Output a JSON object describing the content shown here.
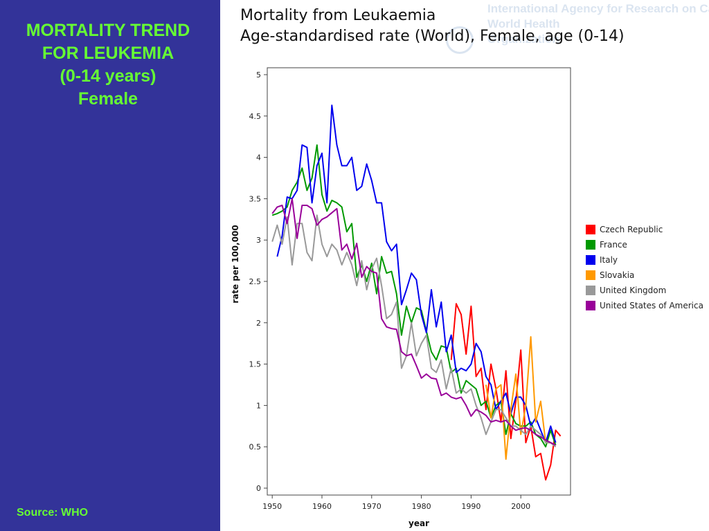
{
  "slide": {
    "title_lines": [
      "MORTALITY TREND",
      "FOR LEUKEMIA",
      "(0-14 years)",
      "Female"
    ],
    "source": "Source: WHO",
    "watermark_lines": [
      "International Agency for Research on Cancer",
      "World Health",
      "Organization"
    ],
    "colors": {
      "panel": "#333399",
      "title": "#66ff33"
    }
  },
  "chart_data": {
    "type": "line",
    "title": "Mortality from Leukaemia",
    "subtitle": "Age-standardised rate (World), Female, age (0-14)",
    "xlabel": "year",
    "ylabel": "rate per 100,000",
    "xlim": [
      1949,
      2010
    ],
    "ylim": [
      0,
      5
    ],
    "xticks": [
      1950,
      1960,
      1970,
      1980,
      1990,
      2000
    ],
    "yticks": [
      0,
      0.5,
      1,
      1.5,
      2,
      2.5,
      3,
      3.5,
      4,
      4.5,
      5
    ],
    "grid": false,
    "legend_position": "right",
    "series": [
      {
        "name": "Czech Republic",
        "color": "#ff0000",
        "x": [
          1986,
          1987,
          1988,
          1989,
          1990,
          1991,
          1992,
          1993,
          1994,
          1995,
          1996,
          1997,
          1998,
          1999,
          2000,
          2001,
          2002,
          2003,
          2004,
          2005,
          2006,
          2007,
          2008
        ],
        "y": [
          1.55,
          2.23,
          2.1,
          1.62,
          2.2,
          1.35,
          1.45,
          0.95,
          1.5,
          1.2,
          0.8,
          1.42,
          0.6,
          1.05,
          1.67,
          0.55,
          0.75,
          0.38,
          0.42,
          0.1,
          0.28,
          0.7,
          0.63
        ]
      },
      {
        "name": "France",
        "color": "#009900",
        "x": [
          1950,
          1951,
          1952,
          1953,
          1954,
          1955,
          1956,
          1957,
          1958,
          1959,
          1960,
          1961,
          1962,
          1963,
          1964,
          1965,
          1966,
          1967,
          1968,
          1969,
          1970,
          1971,
          1972,
          1973,
          1974,
          1975,
          1976,
          1977,
          1978,
          1979,
          1980,
          1981,
          1982,
          1983,
          1984,
          1985,
          1986,
          1987,
          1988,
          1989,
          1990,
          1991,
          1992,
          1993,
          1994,
          1995,
          1996,
          1997,
          1998,
          1999,
          2000,
          2001,
          2002,
          2003,
          2004,
          2005,
          2006,
          2007
        ],
        "y": [
          3.3,
          3.32,
          3.35,
          3.4,
          3.6,
          3.7,
          3.87,
          3.6,
          3.75,
          4.15,
          3.55,
          3.35,
          3.48,
          3.45,
          3.4,
          3.1,
          3.2,
          2.55,
          2.7,
          2.5,
          2.72,
          2.35,
          2.8,
          2.6,
          2.62,
          2.35,
          1.85,
          2.2,
          2.0,
          2.18,
          2.15,
          1.9,
          1.65,
          1.55,
          1.72,
          1.7,
          1.4,
          1.45,
          1.15,
          1.3,
          1.25,
          1.2,
          1.0,
          1.05,
          0.85,
          1.0,
          1.05,
          0.65,
          0.9,
          0.78,
          0.75,
          0.75,
          0.8,
          0.65,
          0.6,
          0.5,
          0.7,
          0.52
        ]
      },
      {
        "name": "Italy",
        "color": "#0000ee",
        "x": [
          1951,
          1952,
          1953,
          1954,
          1955,
          1956,
          1957,
          1958,
          1959,
          1960,
          1961,
          1962,
          1963,
          1964,
          1965,
          1966,
          1967,
          1968,
          1969,
          1970,
          1971,
          1972,
          1973,
          1974,
          1975,
          1976,
          1977,
          1978,
          1979,
          1980,
          1981,
          1982,
          1983,
          1984,
          1985,
          1986,
          1987,
          1988,
          1989,
          1990,
          1991,
          1992,
          1993,
          1994,
          1995,
          1996,
          1997,
          1998,
          1999,
          2000,
          2001,
          2002,
          2003,
          2004,
          2005,
          2006,
          2007
        ],
        "y": [
          2.8,
          3.05,
          3.52,
          3.5,
          3.6,
          4.15,
          4.12,
          3.45,
          3.9,
          4.05,
          3.45,
          4.63,
          4.15,
          3.9,
          3.9,
          4.0,
          3.6,
          3.65,
          3.92,
          3.72,
          3.45,
          3.45,
          2.98,
          2.87,
          2.95,
          2.22,
          2.4,
          2.6,
          2.52,
          2.1,
          1.88,
          2.4,
          1.95,
          2.25,
          1.65,
          1.85,
          1.4,
          1.45,
          1.42,
          1.5,
          1.75,
          1.65,
          1.35,
          1.25,
          0.95,
          1.05,
          1.15,
          0.9,
          1.1,
          1.1,
          1.0,
          0.75,
          0.85,
          0.7,
          0.55,
          0.75,
          0.55
        ]
      },
      {
        "name": "Slovakia",
        "color": "#ff9900",
        "x": [
          1993,
          1994,
          1995,
          1996,
          1997,
          1998,
          1999,
          2000,
          2001,
          2002,
          2003,
          2004,
          2005,
          2006,
          2007
        ],
        "y": [
          1.25,
          0.85,
          1.2,
          1.25,
          0.35,
          0.95,
          1.38,
          0.65,
          1.0,
          1.83,
          0.8,
          1.05,
          0.55,
          0.55,
          0.5
        ]
      },
      {
        "name": "United Kingdom",
        "color": "#999999",
        "x": [
          1950,
          1951,
          1952,
          1953,
          1954,
          1955,
          1956,
          1957,
          1958,
          1959,
          1960,
          1961,
          1962,
          1963,
          1964,
          1965,
          1966,
          1967,
          1968,
          1969,
          1970,
          1971,
          1972,
          1973,
          1974,
          1975,
          1976,
          1977,
          1978,
          1979,
          1980,
          1981,
          1982,
          1983,
          1984,
          1985,
          1986,
          1987,
          1988,
          1989,
          1990,
          1991,
          1992,
          1993,
          1994,
          1995,
          1996,
          1997,
          1998,
          1999,
          2000,
          2001,
          2002,
          2003,
          2004,
          2005,
          2006,
          2007
        ],
        "y": [
          2.98,
          3.18,
          2.95,
          3.28,
          2.7,
          3.2,
          3.2,
          2.85,
          2.75,
          3.3,
          2.95,
          2.8,
          2.95,
          2.88,
          2.7,
          2.85,
          2.7,
          2.45,
          2.75,
          2.4,
          2.65,
          2.78,
          2.45,
          2.05,
          2.1,
          2.25,
          1.45,
          1.6,
          2.0,
          1.6,
          1.75,
          1.85,
          1.45,
          1.4,
          1.55,
          1.2,
          1.45,
          1.15,
          1.2,
          1.15,
          1.2,
          1.0,
          0.85,
          0.65,
          0.8,
          0.95,
          0.95,
          0.85,
          0.75,
          0.75,
          0.7,
          0.65,
          0.75,
          0.7,
          0.65,
          0.55,
          0.55,
          0.5
        ]
      },
      {
        "name": "United States of America",
        "color": "#990099",
        "x": [
          1950,
          1951,
          1952,
          1953,
          1954,
          1955,
          1956,
          1957,
          1958,
          1959,
          1960,
          1961,
          1962,
          1963,
          1964,
          1965,
          1966,
          1967,
          1968,
          1969,
          1970,
          1971,
          1972,
          1973,
          1974,
          1975,
          1976,
          1977,
          1978,
          1979,
          1980,
          1981,
          1982,
          1983,
          1984,
          1985,
          1986,
          1987,
          1988,
          1989,
          1990,
          1991,
          1992,
          1993,
          1994,
          1995,
          1996,
          1997,
          1998,
          1999,
          2000,
          2001,
          2002,
          2003,
          2004,
          2005,
          2006,
          2007
        ],
        "y": [
          3.32,
          3.4,
          3.42,
          3.2,
          3.5,
          3.02,
          3.42,
          3.42,
          3.38,
          3.18,
          3.25,
          3.28,
          3.33,
          3.38,
          2.88,
          2.95,
          2.77,
          2.96,
          2.55,
          2.68,
          2.62,
          2.6,
          2.05,
          1.95,
          1.93,
          1.92,
          1.65,
          1.6,
          1.62,
          1.48,
          1.33,
          1.38,
          1.33,
          1.32,
          1.12,
          1.15,
          1.1,
          1.08,
          1.1,
          1.0,
          0.87,
          0.95,
          0.92,
          0.88,
          0.8,
          0.82,
          0.8,
          0.82,
          0.75,
          0.7,
          0.72,
          0.73,
          0.7,
          0.65,
          0.62,
          0.58,
          0.55,
          0.52
        ]
      }
    ]
  }
}
